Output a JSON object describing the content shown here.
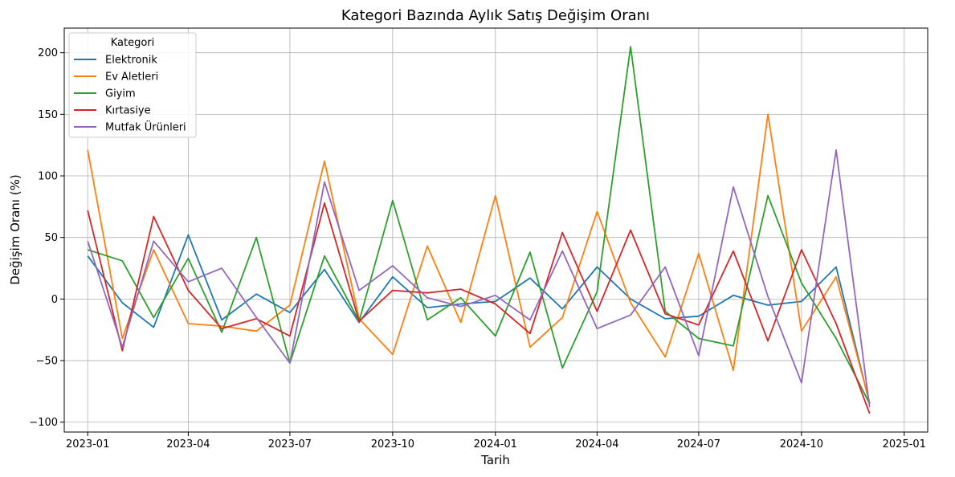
{
  "chart_data": {
    "type": "line",
    "title": "Kategori Bazında Aylık Satış Değişim Oranı",
    "xlabel": "Tarih",
    "ylabel": "Değişim Oranı (%)",
    "x": [
      "2023-01",
      "2023-02",
      "2023-03",
      "2023-04",
      "2023-05",
      "2023-06",
      "2023-07",
      "2023-08",
      "2023-09",
      "2023-10",
      "2023-11",
      "2023-12",
      "2024-01",
      "2024-02",
      "2024-03",
      "2024-04",
      "2024-05",
      "2024-06",
      "2024-07",
      "2024-08",
      "2024-09",
      "2024-10",
      "2024-11",
      "2024-12"
    ],
    "x_ticks": [
      "2023-01",
      "2023-04",
      "2023-07",
      "2023-10",
      "2024-01",
      "2024-04",
      "2024-07",
      "2024-10",
      "2025-01"
    ],
    "x_range": [
      "2022-12-11",
      "2025-01-22"
    ],
    "y_ticks": [
      -100,
      -50,
      0,
      50,
      100,
      150,
      200
    ],
    "y_tick_labels": [
      "−100",
      "−50",
      "0",
      "50",
      "100",
      "150",
      "200"
    ],
    "ylim": [
      -108,
      220
    ],
    "grid": true,
    "legend": {
      "title": "Kategori",
      "placement": "top-left"
    },
    "series": [
      {
        "name": "Elektronik",
        "color": "#1f77b4",
        "values": [
          35,
          -3,
          -23,
          52,
          -17,
          4,
          -11,
          24,
          -19,
          18,
          -7,
          -4,
          -2,
          17,
          -8,
          26,
          0,
          -16,
          -14,
          3,
          -5,
          -2,
          26,
          -85
        ]
      },
      {
        "name": "Ev Aletleri",
        "color": "#ff7f0e",
        "values": [
          121,
          -32,
          40,
          -20,
          -22,
          -26,
          -5,
          112,
          -16,
          -45,
          43,
          -19,
          84,
          -39,
          -15,
          71,
          -3,
          -47,
          37,
          -58,
          150,
          -26,
          18,
          -84
        ]
      },
      {
        "name": "Giyim",
        "color": "#2ca02c",
        "values": [
          40,
          31,
          -15,
          33,
          -27,
          50,
          -52,
          35,
          -18,
          80,
          -17,
          1,
          -30,
          38,
          -56,
          6,
          205,
          -10,
          -32,
          -38,
          84,
          13,
          -32,
          -85
        ]
      },
      {
        "name": "Kırtasiye",
        "color": "#d62728",
        "values": [
          72,
          -42,
          67,
          7,
          -24,
          -16,
          -30,
          78,
          -18,
          7,
          5,
          8,
          -4,
          -28,
          54,
          -10,
          56,
          -12,
          -21,
          39,
          -34,
          40,
          -20,
          -93
        ]
      },
      {
        "name": "Mutfak Ürünleri",
        "color": "#9467bd",
        "values": [
          47,
          -39,
          47,
          14,
          25,
          -15,
          -52,
          95,
          7,
          27,
          1,
          -6,
          3,
          -17,
          39,
          -24,
          -13,
          26,
          -46,
          91,
          2,
          -68,
          121,
          -88
        ]
      }
    ]
  }
}
